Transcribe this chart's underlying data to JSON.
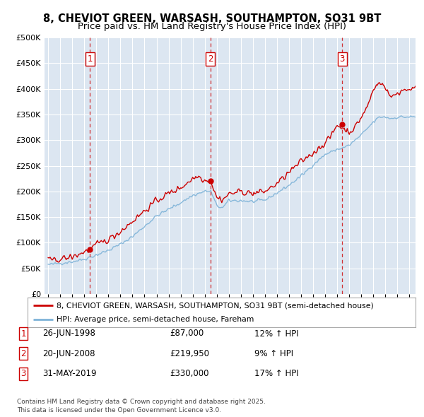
{
  "title": "8, CHEVIOT GREEN, WARSASH, SOUTHAMPTON, SO31 9BT",
  "subtitle": "Price paid vs. HM Land Registry's House Price Index (HPI)",
  "legend_label_red": "8, CHEVIOT GREEN, WARSASH, SOUTHAMPTON, SO31 9BT (semi-detached house)",
  "legend_label_blue": "HPI: Average price, semi-detached house, Fareham",
  "footer": "Contains HM Land Registry data © Crown copyright and database right 2025.\nThis data is licensed under the Open Government Licence v3.0.",
  "sales": [
    {
      "num": 1,
      "date": "26-JUN-1998",
      "price": 87000,
      "hpi_pct": "12% ↑ HPI",
      "year": 1998.47
    },
    {
      "num": 2,
      "date": "20-JUN-2008",
      "price": 219950,
      "hpi_pct": "9% ↑ HPI",
      "year": 2008.47
    },
    {
      "num": 3,
      "date": "31-MAY-2019",
      "price": 330000,
      "hpi_pct": "17% ↑ HPI",
      "year": 2019.41
    }
  ],
  "ylim": [
    0,
    500000
  ],
  "xlim": [
    1994.7,
    2025.5
  ],
  "yticks": [
    0,
    50000,
    100000,
    150000,
    200000,
    250000,
    300000,
    350000,
    400000,
    450000,
    500000
  ],
  "bg_color": "#dce6f1",
  "grid_color": "#ffffff",
  "red_color": "#cc0000",
  "blue_color": "#7eb3d8",
  "dashed_color": "#cc0000"
}
